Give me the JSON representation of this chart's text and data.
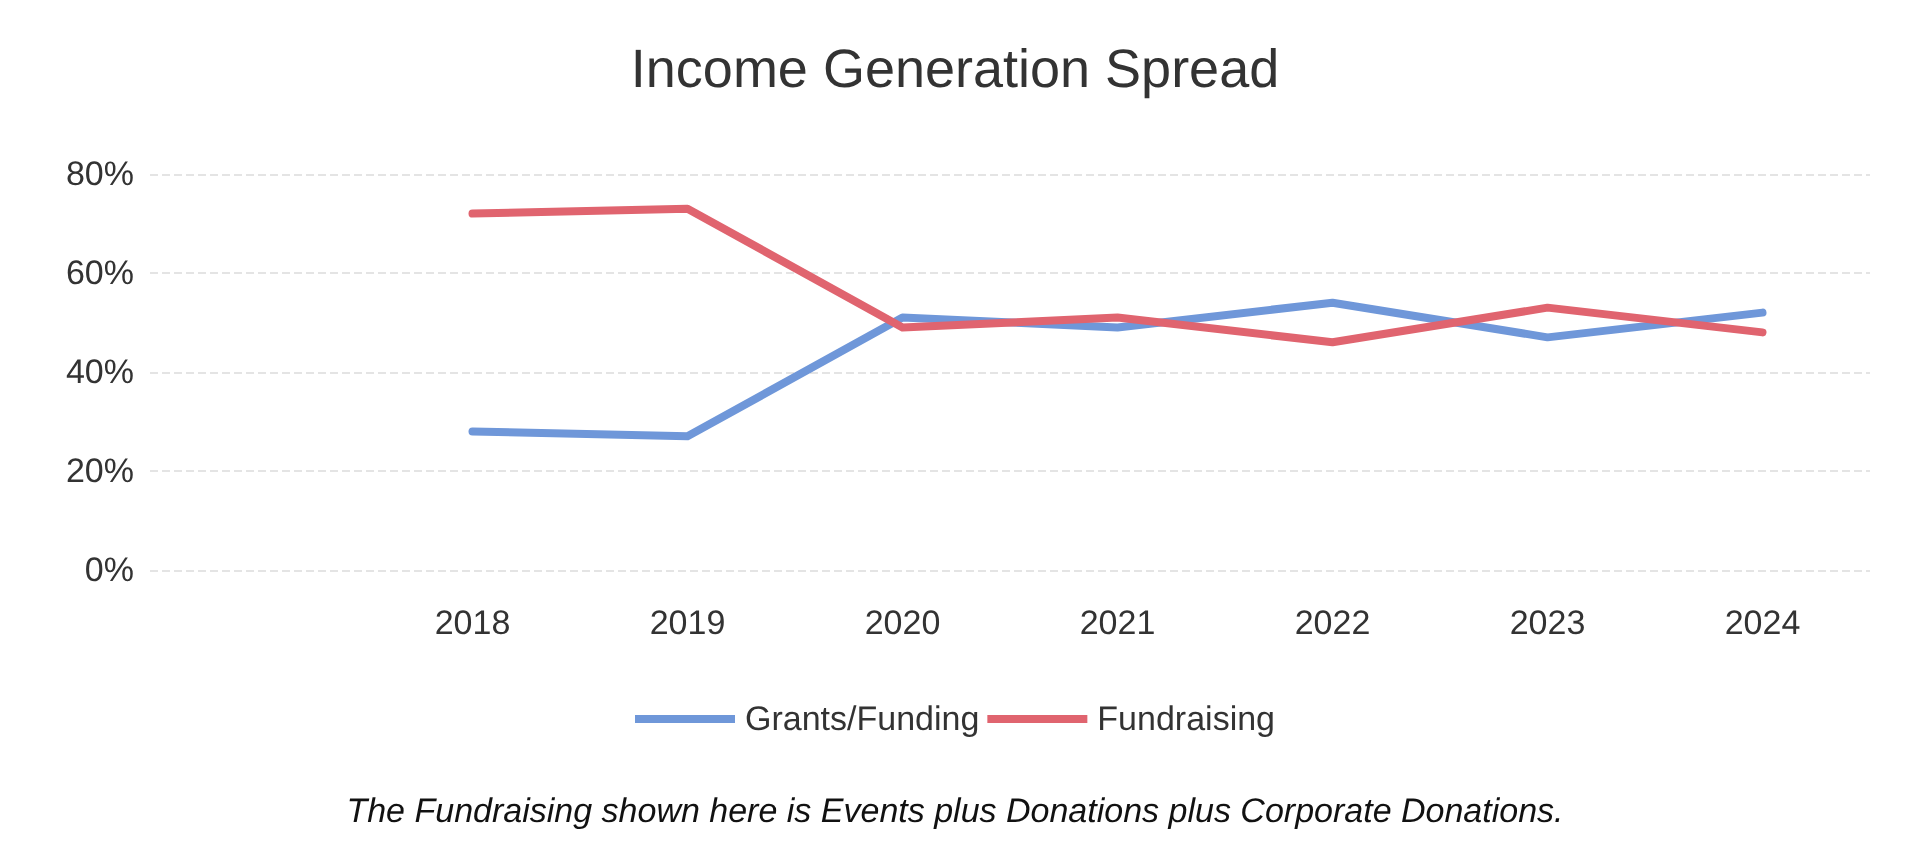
{
  "chart_data": {
    "type": "line",
    "title": "Income Generation Spread",
    "categories": [
      null,
      "2018",
      "2019",
      "2020",
      "2021",
      "2022",
      "2023",
      "2024"
    ],
    "series": [
      {
        "name": "Grants/Funding",
        "color": "#6f97d9",
        "values": [
          null,
          28,
          27,
          51,
          49,
          54,
          47,
          52
        ]
      },
      {
        "name": "Fundraising",
        "color": "#e0646f",
        "values": [
          null,
          72,
          73,
          49,
          51,
          46,
          53,
          48
        ]
      }
    ],
    "ylim": [
      0,
      80
    ],
    "yticks": [
      {
        "value": 0,
        "label": "0%"
      },
      {
        "value": 20,
        "label": "20%"
      },
      {
        "value": 40,
        "label": "40%"
      },
      {
        "value": 60,
        "label": "60%"
      },
      {
        "value": 80,
        "label": "80%"
      }
    ],
    "grid": "y",
    "legend": "bottom",
    "marker": "none",
    "line_style": "solid",
    "annotations": [
      "The Fundraising shown here is Events plus Donations plus Corporate Donations."
    ]
  }
}
